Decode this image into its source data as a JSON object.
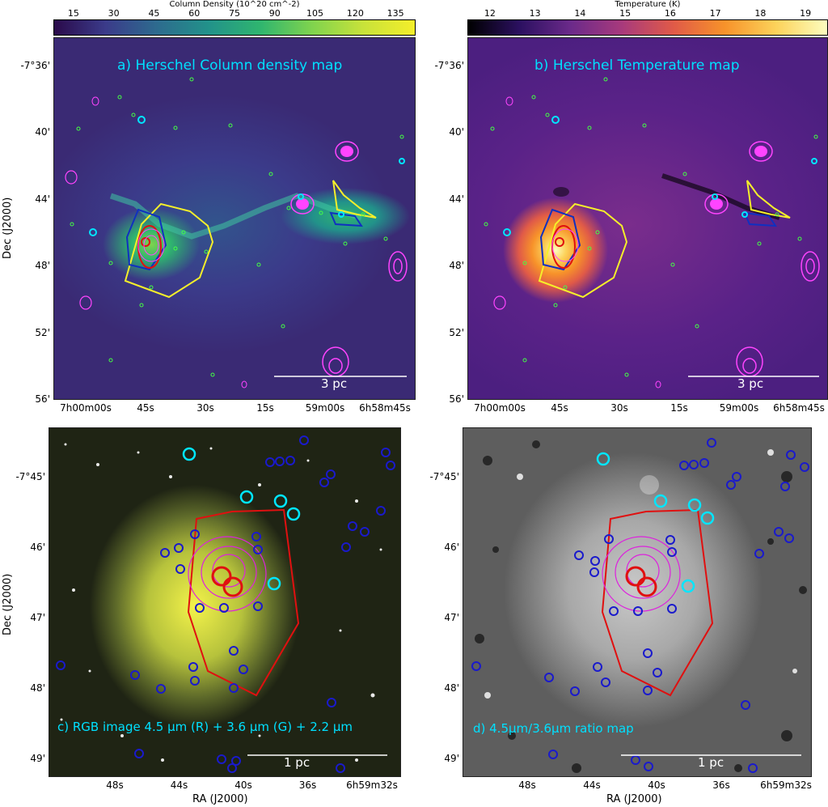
{
  "colorbars": {
    "a": {
      "title": "Column Density (10^20 cm^-2)",
      "ticks": [
        "15",
        "30",
        "45",
        "60",
        "75",
        "90",
        "105",
        "120",
        "135"
      ],
      "colors": [
        "#2a0a4a",
        "#3b3b8a",
        "#2d6b8e",
        "#22928a",
        "#2fb56f",
        "#7fd34e",
        "#c8e23a",
        "#f4ee2a"
      ]
    },
    "b": {
      "title": "Temperature (K)",
      "ticks": [
        "12",
        "13",
        "14",
        "15",
        "16",
        "17",
        "18",
        "19"
      ],
      "colors": [
        "#000000",
        "#2b1060",
        "#6b2a8a",
        "#a83a7c",
        "#e05a48",
        "#f7922a",
        "#fcd25a",
        "#fcfdbf"
      ]
    }
  },
  "panels": {
    "a": {
      "title": "a) Herschel Column density map",
      "scale": "3 pc",
      "ra_ticks": [
        "7h00m00s",
        "45s",
        "30s",
        "15s",
        "59m00s",
        "6h58m45s"
      ],
      "dec_ticks": [
        "-7°36'",
        "40'",
        "44'",
        "48'",
        "52'",
        "56'"
      ]
    },
    "b": {
      "title": "b) Herschel Temperature map",
      "scale": "3 pc",
      "ra_ticks": [
        "7h00m00s",
        "45s",
        "30s",
        "15s",
        "59m00s",
        "6h58m45s"
      ],
      "dec_ticks": [
        "-7°36'",
        "40'",
        "44'",
        "48'",
        "52'",
        "56'"
      ]
    },
    "c": {
      "title": "c) RGB image 4.5 μm (R) + 3.6 μm (G) + 2.2 μm",
      "scale": "1 pc",
      "ra_ticks": [
        "48s",
        "44s",
        "40s",
        "36s",
        "6h59m32s"
      ],
      "dec_ticks": [
        "-7°45'",
        "46'",
        "47'",
        "48'",
        "49'"
      ]
    },
    "d": {
      "title": "d) 4.5μm/3.6μm ratio map",
      "scale": "1 pc",
      "ra_ticks": [
        "48s",
        "44s",
        "40s",
        "36s",
        "6h59m32s"
      ],
      "dec_ticks": [
        "-7°45'",
        "46'",
        "47'",
        "48'",
        "49'"
      ]
    }
  },
  "axes": {
    "dec_label": "Dec (J2000)",
    "ra_label": "RA (J2000)"
  }
}
